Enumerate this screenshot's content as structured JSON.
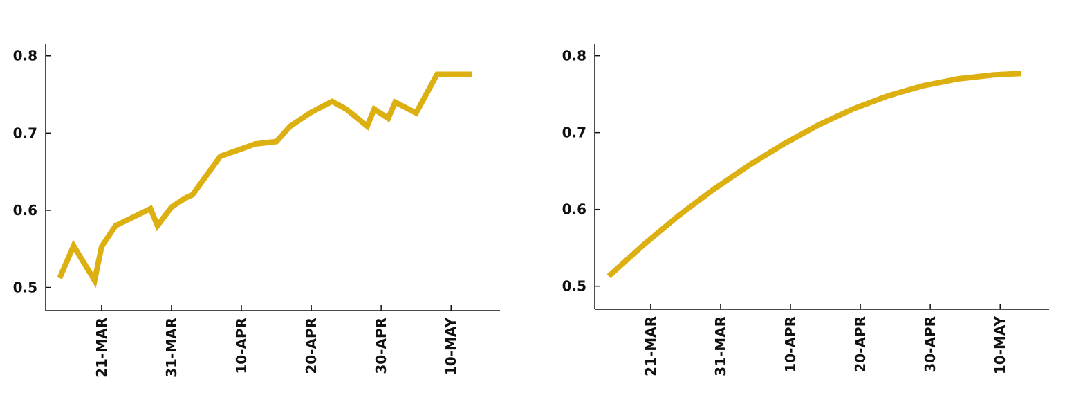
{
  "chart_data": [
    {
      "type": "line",
      "title": "",
      "xlabel": "",
      "ylabel": "",
      "x_type": "date",
      "xlim": [
        "2020-03-13",
        "2020-05-17"
      ],
      "ylim": [
        0.47,
        0.815
      ],
      "grid": false,
      "color": "#DDB012",
      "x_ticks": [
        {
          "date": "2020-03-21",
          "label": "21-MAR"
        },
        {
          "date": "2020-03-31",
          "label": "31-MAR"
        },
        {
          "date": "2020-04-10",
          "label": "10-APR"
        },
        {
          "date": "2020-04-20",
          "label": "20-APR"
        },
        {
          "date": "2020-04-30",
          "label": "30-APR"
        },
        {
          "date": "2020-05-10",
          "label": "10-MAY"
        }
      ],
      "y_ticks": [
        {
          "value": 0.5,
          "label": "0.5"
        },
        {
          "value": 0.6,
          "label": "0.6"
        },
        {
          "value": 0.7,
          "label": "0.7"
        },
        {
          "value": 0.8,
          "label": "0.8"
        }
      ],
      "series": [
        {
          "points": [
            [
              "2020-03-15",
              0.512
            ],
            [
              "2020-03-17",
              0.554
            ],
            [
              "2020-03-20",
              0.509
            ],
            [
              "2020-03-21",
              0.553
            ],
            [
              "2020-03-23",
              0.58
            ],
            [
              "2020-03-28",
              0.602
            ],
            [
              "2020-03-29",
              0.58
            ],
            [
              "2020-03-31",
              0.604
            ],
            [
              "2020-04-02",
              0.616
            ],
            [
              "2020-04-03",
              0.62
            ],
            [
              "2020-04-07",
              0.67
            ],
            [
              "2020-04-12",
              0.686
            ],
            [
              "2020-04-15",
              0.689
            ],
            [
              "2020-04-17",
              0.709
            ],
            [
              "2020-04-20",
              0.727
            ],
            [
              "2020-04-23",
              0.741
            ],
            [
              "2020-04-25",
              0.731
            ],
            [
              "2020-04-28",
              0.709
            ],
            [
              "2020-04-29",
              0.731
            ],
            [
              "2020-05-01",
              0.719
            ],
            [
              "2020-05-02",
              0.74
            ],
            [
              "2020-05-05",
              0.726
            ],
            [
              "2020-05-08",
              0.776
            ],
            [
              "2020-05-13",
              0.776
            ]
          ]
        }
      ]
    },
    {
      "type": "line",
      "title": "",
      "xlabel": "",
      "ylabel": "",
      "x_type": "date",
      "xlim": [
        "2020-03-13",
        "2020-05-17"
      ],
      "ylim": [
        0.47,
        0.815
      ],
      "grid": false,
      "color": "#DDB012",
      "x_ticks": [
        {
          "date": "2020-03-21",
          "label": "21-MAR"
        },
        {
          "date": "2020-03-31",
          "label": "31-MAR"
        },
        {
          "date": "2020-04-10",
          "label": "10-APR"
        },
        {
          "date": "2020-04-20",
          "label": "20-APR"
        },
        {
          "date": "2020-04-30",
          "label": "30-APR"
        },
        {
          "date": "2020-05-10",
          "label": "10-MAY"
        }
      ],
      "y_ticks": [
        {
          "value": 0.5,
          "label": "0.5"
        },
        {
          "value": 0.6,
          "label": "0.6"
        },
        {
          "value": 0.7,
          "label": "0.7"
        },
        {
          "value": 0.8,
          "label": "0.8"
        }
      ],
      "series": [
        {
          "points": [
            [
              "2020-03-15",
              0.513
            ],
            [
              "2020-03-20",
              0.554
            ],
            [
              "2020-03-25",
              0.592
            ],
            [
              "2020-03-30",
              0.626
            ],
            [
              "2020-04-04",
              0.657
            ],
            [
              "2020-04-09",
              0.685
            ],
            [
              "2020-04-14",
              0.71
            ],
            [
              "2020-04-19",
              0.731
            ],
            [
              "2020-04-24",
              0.748
            ],
            [
              "2020-04-29",
              0.761
            ],
            [
              "2020-05-04",
              0.77
            ],
            [
              "2020-05-09",
              0.775
            ],
            [
              "2020-05-13",
              0.777
            ]
          ]
        }
      ]
    }
  ]
}
